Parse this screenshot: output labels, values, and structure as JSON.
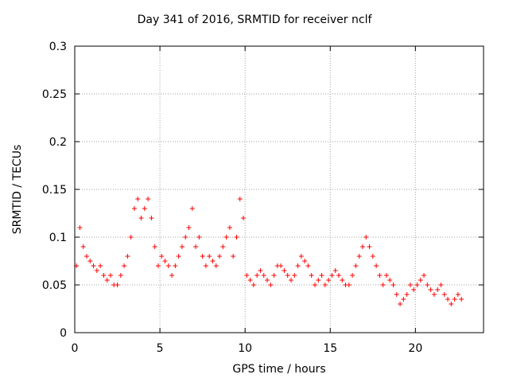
{
  "chart_data": {
    "type": "scatter",
    "title": "Day 341 of 2016, SRMTID for receiver nclf",
    "xlabel": "GPS time / hours",
    "ylabel": "SRMTID / TECUs",
    "xlim": [
      0,
      24
    ],
    "ylim": [
      0,
      0.3
    ],
    "xticks": [
      0,
      5,
      10,
      15,
      20
    ],
    "yticks": [
      0,
      0.05,
      0.1,
      0.15,
      0.2,
      0.25,
      0.3
    ],
    "grid": true,
    "marker": "+",
    "color": "#ff0000",
    "series": [
      {
        "name": "SRMTID",
        "x": [
          0.1,
          0.3,
          0.5,
          0.7,
          0.9,
          1.1,
          1.3,
          1.5,
          1.7,
          1.9,
          2.1,
          2.3,
          2.5,
          2.7,
          2.9,
          3.1,
          3.3,
          3.5,
          3.7,
          3.9,
          4.1,
          4.3,
          4.5,
          4.7,
          4.9,
          5.1,
          5.3,
          5.5,
          5.7,
          5.9,
          6.1,
          6.3,
          6.5,
          6.7,
          6.9,
          7.1,
          7.3,
          7.5,
          7.7,
          7.9,
          8.1,
          8.3,
          8.5,
          8.7,
          8.9,
          9.1,
          9.3,
          9.5,
          9.7,
          9.9,
          10.1,
          10.3,
          10.5,
          10.7,
          10.9,
          11.1,
          11.3,
          11.5,
          11.7,
          11.9,
          12.1,
          12.3,
          12.5,
          12.7,
          12.9,
          13.1,
          13.3,
          13.5,
          13.7,
          13.9,
          14.1,
          14.3,
          14.5,
          14.7,
          14.9,
          15.1,
          15.3,
          15.5,
          15.7,
          15.9,
          16.1,
          16.3,
          16.5,
          16.7,
          16.9,
          17.1,
          17.3,
          17.5,
          17.7,
          17.9,
          18.1,
          18.3,
          18.5,
          18.7,
          18.9,
          19.1,
          19.3,
          19.5,
          19.7,
          19.9,
          20.1,
          20.3,
          20.5,
          20.7,
          20.9,
          21.1,
          21.3,
          21.5,
          21.7,
          21.9,
          22.1,
          22.3,
          22.5,
          22.7
        ],
        "values": [
          0.07,
          0.11,
          0.09,
          0.08,
          0.075,
          0.07,
          0.065,
          0.07,
          0.06,
          0.055,
          0.06,
          0.05,
          0.05,
          0.06,
          0.07,
          0.08,
          0.1,
          0.13,
          0.14,
          0.12,
          0.13,
          0.14,
          0.12,
          0.09,
          0.07,
          0.08,
          0.075,
          0.07,
          0.06,
          0.07,
          0.08,
          0.09,
          0.1,
          0.11,
          0.13,
          0.09,
          0.1,
          0.08,
          0.07,
          0.08,
          0.075,
          0.07,
          0.08,
          0.09,
          0.1,
          0.11,
          0.08,
          0.1,
          0.14,
          0.12,
          0.06,
          0.055,
          0.05,
          0.06,
          0.065,
          0.06,
          0.055,
          0.05,
          0.06,
          0.07,
          0.07,
          0.065,
          0.06,
          0.055,
          0.06,
          0.07,
          0.08,
          0.075,
          0.07,
          0.06,
          0.05,
          0.055,
          0.06,
          0.05,
          0.055,
          0.06,
          0.065,
          0.06,
          0.055,
          0.05,
          0.05,
          0.06,
          0.07,
          0.08,
          0.09,
          0.1,
          0.09,
          0.08,
          0.07,
          0.06,
          0.05,
          0.06,
          0.055,
          0.05,
          0.04,
          0.03,
          0.035,
          0.04,
          0.05,
          0.045,
          0.05,
          0.055,
          0.06,
          0.05,
          0.045,
          0.04,
          0.045,
          0.05,
          0.04,
          0.035,
          0.03,
          0.035,
          0.04,
          0.035
        ]
      }
    ]
  }
}
